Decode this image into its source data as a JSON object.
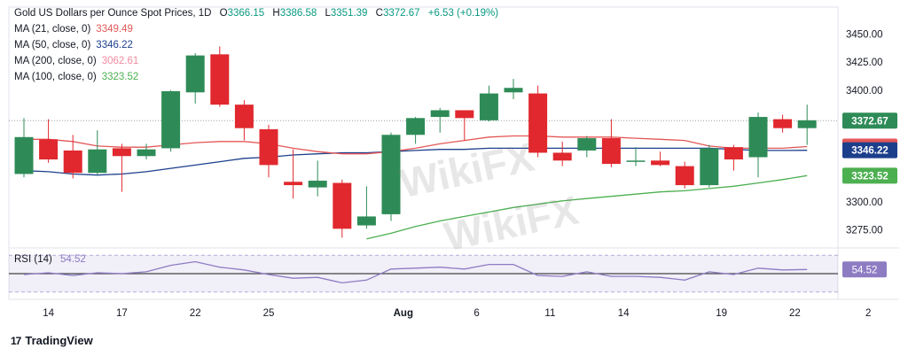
{
  "header": {
    "title": "Gold US Dollars per Ounce Spot Prices, 1D",
    "open_label": "O",
    "open": "3366.15",
    "high_label": "H",
    "high": "3386.58",
    "low_label": "L",
    "low": "3351.39",
    "close_label": "C",
    "close": "3372.67",
    "change": "+6.53 (+0.19%)"
  },
  "indicators": [
    {
      "label": "MA (21, close, 0)",
      "value": "3349.49",
      "color": "#e45757"
    },
    {
      "label": "MA (50, close, 0)",
      "value": "3346.22",
      "color": "#1c3f8c"
    },
    {
      "label": "MA (200, close, 0)",
      "value": "3062.61",
      "color": "#f08aa0"
    },
    {
      "label": "MA (100, close, 0)",
      "value": "3323.52",
      "color": "#4caf50"
    }
  ],
  "rsi": {
    "label": "RSI (14)",
    "value": "54.52",
    "color": "#8e7cc3"
  },
  "branding": {
    "logo_text": "TradingView",
    "logo_mark": "17"
  },
  "watermark": {
    "text": "WikiFX"
  },
  "colors": {
    "up": "#2e8b57",
    "down": "#e0282e",
    "ma21": "#e45757",
    "ma50": "#1c3f8c",
    "ma100": "#4caf50",
    "rsi": "#8e7cc3"
  },
  "chart_data": {
    "type": "candlestick",
    "ylim": [
      3262,
      3460
    ],
    "y_ticks": [
      3275.0,
      3300.0,
      3325.0,
      3350.0,
      3375.0,
      3400.0,
      3425.0,
      3450.0
    ],
    "y_tick_labels": [
      "3275.00",
      "3300.00",
      "3325.00",
      "",
      "",
      "3400.00",
      "3425.00",
      "3450.00"
    ],
    "x_labels": [
      "14",
      "17",
      "22",
      "25",
      "Aug",
      "6",
      "11",
      "14",
      "19",
      "22",
      "2"
    ],
    "x_label_bar_index": [
      1,
      4,
      7,
      10,
      15.5,
      18.5,
      21.5,
      24.5,
      28.5,
      31.5,
      34.5
    ],
    "last_price": 3372.67,
    "price_badges": [
      {
        "label": "3372.67",
        "value": 3372.67,
        "color": "#2e8b57"
      },
      {
        "label": "3349.49",
        "value": 3349.49,
        "color": "#e45757"
      },
      {
        "label": "3346.22",
        "value": 3346.22,
        "color": "#1c3f8c"
      },
      {
        "label": "3323.52",
        "value": 3323.52,
        "color": "#4caf50"
      }
    ],
    "candles": [
      {
        "o": 3325,
        "h": 3375,
        "l": 3322,
        "c": 3358
      },
      {
        "o": 3356,
        "h": 3374,
        "l": 3335,
        "c": 3338
      },
      {
        "o": 3346,
        "h": 3360,
        "l": 3321,
        "c": 3326
      },
      {
        "o": 3326,
        "h": 3364,
        "l": 3324,
        "c": 3347
      },
      {
        "o": 3348,
        "h": 3352,
        "l": 3309,
        "c": 3341
      },
      {
        "o": 3341,
        "h": 3352,
        "l": 3338,
        "c": 3347
      },
      {
        "o": 3348,
        "h": 3400,
        "l": 3345,
        "c": 3399
      },
      {
        "o": 3398,
        "h": 3433,
        "l": 3388,
        "c": 3431
      },
      {
        "o": 3432,
        "h": 3439,
        "l": 3385,
        "c": 3387
      },
      {
        "o": 3387,
        "h": 3391,
        "l": 3355,
        "c": 3366
      },
      {
        "o": 3365,
        "h": 3369,
        "l": 3322,
        "c": 3333
      },
      {
        "o": 3318,
        "h": 3347,
        "l": 3303,
        "c": 3315
      },
      {
        "o": 3313,
        "h": 3337,
        "l": 3305,
        "c": 3319
      },
      {
        "o": 3317,
        "h": 3320,
        "l": 3268,
        "c": 3276
      },
      {
        "o": 3279,
        "h": 3314,
        "l": 3276,
        "c": 3287
      },
      {
        "o": 3289,
        "h": 3362,
        "l": 3283,
        "c": 3360
      },
      {
        "o": 3360,
        "h": 3376,
        "l": 3352,
        "c": 3375
      },
      {
        "o": 3376,
        "h": 3384,
        "l": 3362,
        "c": 3382
      },
      {
        "o": 3382,
        "h": 3382,
        "l": 3355,
        "c": 3375
      },
      {
        "o": 3373,
        "h": 3404,
        "l": 3372,
        "c": 3397
      },
      {
        "o": 3398,
        "h": 3410,
        "l": 3392,
        "c": 3402
      },
      {
        "o": 3397,
        "h": 3404,
        "l": 3340,
        "c": 3344
      },
      {
        "o": 3344,
        "h": 3354,
        "l": 3332,
        "c": 3337
      },
      {
        "o": 3346,
        "h": 3359,
        "l": 3340,
        "c": 3357
      },
      {
        "o": 3357,
        "h": 3374,
        "l": 3331,
        "c": 3334
      },
      {
        "o": 3336,
        "h": 3349,
        "l": 3332,
        "c": 3337
      },
      {
        "o": 3337,
        "h": 3345,
        "l": 3332,
        "c": 3333
      },
      {
        "o": 3332,
        "h": 3336,
        "l": 3312,
        "c": 3315
      },
      {
        "o": 3315,
        "h": 3351,
        "l": 3313,
        "c": 3348
      },
      {
        "o": 3349,
        "h": 3351,
        "l": 3328,
        "c": 3338
      },
      {
        "o": 3340,
        "h": 3380,
        "l": 3322,
        "c": 3376
      },
      {
        "o": 3374,
        "h": 3378,
        "l": 3362,
        "c": 3366
      },
      {
        "o": 3366,
        "h": 3387,
        "l": 3351,
        "c": 3373
      }
    ],
    "ma21": [
      3356,
      3356,
      3354,
      3350,
      3349,
      3349,
      3351,
      3353,
      3354,
      3354,
      3352,
      3348,
      3345,
      3343,
      3343,
      3345,
      3348,
      3352,
      3355,
      3358,
      3359,
      3359,
      3358,
      3358,
      3358,
      3357,
      3356,
      3355,
      3350,
      3348,
      3348,
      3348,
      3349.49
    ],
    "ma50": [
      3328,
      3327,
      3325,
      3324,
      3325,
      3327,
      3330,
      3333,
      3336,
      3339,
      3340,
      3342,
      3343,
      3344,
      3344,
      3345,
      3346,
      3347,
      3347,
      3348,
      3348,
      3348,
      3348,
      3348,
      3348,
      3348,
      3348,
      3348,
      3348,
      3347,
      3346,
      3346,
      3346.22
    ],
    "ma100": [
      null,
      null,
      null,
      null,
      null,
      null,
      null,
      null,
      null,
      null,
      null,
      null,
      null,
      null,
      3267,
      3272,
      3278,
      3283,
      3287,
      3291,
      3295,
      3298,
      3301,
      3303,
      3305,
      3307,
      3309,
      3310,
      3312,
      3314,
      3317,
      3320,
      3323.52
    ],
    "rsi": [
      49,
      51,
      48,
      51,
      50,
      52,
      59,
      63,
      57,
      54,
      49,
      45,
      46,
      40,
      43,
      55,
      56,
      57,
      55,
      60,
      60,
      48,
      47,
      52,
      47,
      47,
      46,
      43,
      52,
      49,
      56,
      54,
      54.52
    ],
    "rsi_ylim": [
      25,
      75
    ],
    "rsi_band": [
      30,
      70
    ]
  }
}
